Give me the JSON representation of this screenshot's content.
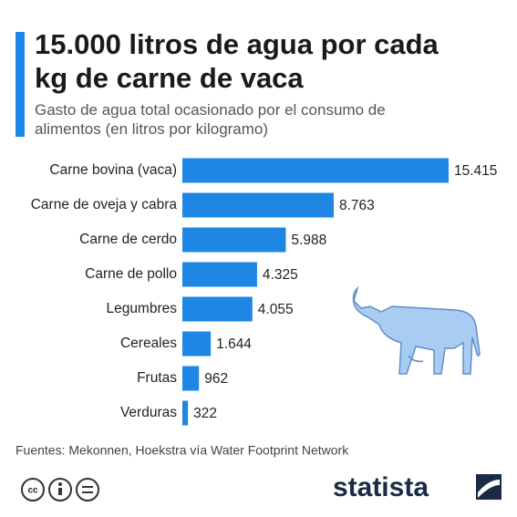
{
  "chart_data": {
    "type": "bar",
    "orientation": "horizontal",
    "title": "15.000 litros de agua por cada kg de carne de vaca",
    "subtitle": "Gasto de agua total ocasionado por el consumo de alimentos (en litros por kilogramo)",
    "categories": [
      "Carne bovina (vaca)",
      "Carne de oveja y cabra",
      "Carne de cerdo",
      "Carne de pollo",
      "Legumbres",
      "Cereales",
      "Frutas",
      "Verduras"
    ],
    "values": [
      15415,
      8763,
      5988,
      4325,
      4055,
      1644,
      962,
      322
    ],
    "value_labels": [
      "15.415",
      "8.763",
      "5.988",
      "4.325",
      "4.055",
      "1.644",
      "962",
      "322"
    ],
    "color": "#1f86e3",
    "source": "Fuentes: Mekonnen, Hoekstra vía Water Footprint Network",
    "brand": "statista"
  }
}
